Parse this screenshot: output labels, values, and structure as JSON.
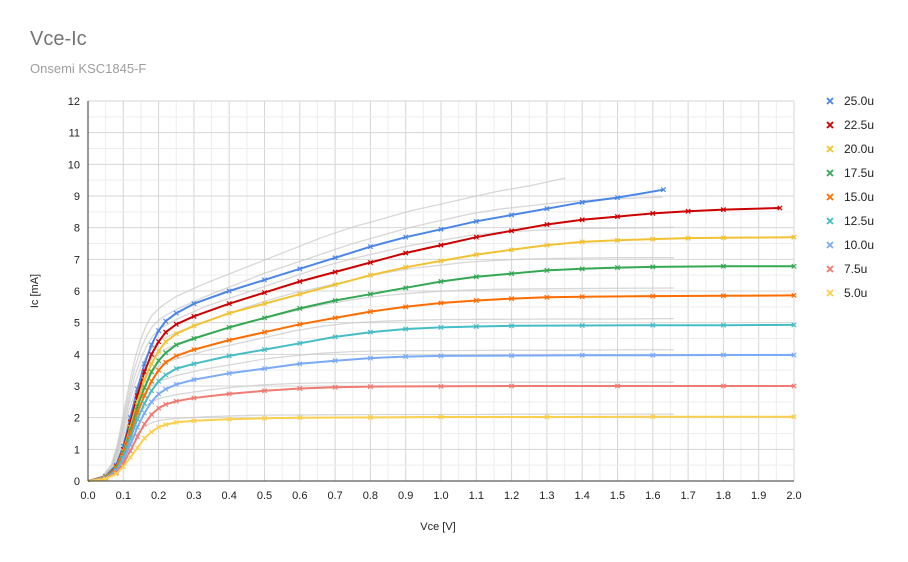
{
  "chart_data": {
    "type": "line",
    "title": "Vce-Ic",
    "subtitle": "Onsemi KSC1845-F",
    "xlabel": "Vce [V]",
    "ylabel": "Ic [mA]",
    "xlim": [
      0,
      2
    ],
    "ylim": [
      0,
      12
    ],
    "x_ticks": [
      "0.0",
      "0.1",
      "0.2",
      "0.3",
      "0.4",
      "0.5",
      "0.6",
      "0.7",
      "0.8",
      "0.9",
      "1.0",
      "1.1",
      "1.2",
      "1.3",
      "1.4",
      "1.5",
      "1.6",
      "1.7",
      "1.8",
      "1.9",
      "2.0"
    ],
    "y_ticks": [
      "0",
      "1",
      "2",
      "3",
      "4",
      "5",
      "6",
      "7",
      "8",
      "9",
      "10",
      "11",
      "12"
    ],
    "grid": true,
    "legend_position": "right",
    "series": [
      {
        "name": "25.0u",
        "color": "#4a86e8",
        "points": [
          [
            0,
            0
          ],
          [
            0.05,
            0.15
          ],
          [
            0.08,
            0.5
          ],
          [
            0.1,
            1.1
          ],
          [
            0.12,
            2.0
          ],
          [
            0.14,
            2.9
          ],
          [
            0.16,
            3.7
          ],
          [
            0.18,
            4.3
          ],
          [
            0.2,
            4.75
          ],
          [
            0.22,
            5.05
          ],
          [
            0.25,
            5.3
          ],
          [
            0.3,
            5.6
          ],
          [
            0.4,
            6.0
          ],
          [
            0.5,
            6.35
          ],
          [
            0.6,
            6.7
          ],
          [
            0.7,
            7.05
          ],
          [
            0.8,
            7.4
          ],
          [
            0.9,
            7.7
          ],
          [
            1.0,
            7.95
          ],
          [
            1.1,
            8.2
          ],
          [
            1.2,
            8.4
          ],
          [
            1.3,
            8.6
          ],
          [
            1.4,
            8.8
          ],
          [
            1.5,
            8.95
          ],
          [
            1.63,
            9.2
          ]
        ]
      },
      {
        "name": "22.5u",
        "color": "#cc0000",
        "points": [
          [
            0,
            0
          ],
          [
            0.05,
            0.14
          ],
          [
            0.08,
            0.45
          ],
          [
            0.1,
            1.0
          ],
          [
            0.12,
            1.85
          ],
          [
            0.14,
            2.7
          ],
          [
            0.16,
            3.45
          ],
          [
            0.18,
            4.0
          ],
          [
            0.2,
            4.4
          ],
          [
            0.22,
            4.7
          ],
          [
            0.25,
            4.95
          ],
          [
            0.3,
            5.2
          ],
          [
            0.4,
            5.6
          ],
          [
            0.5,
            5.95
          ],
          [
            0.6,
            6.3
          ],
          [
            0.7,
            6.6
          ],
          [
            0.8,
            6.9
          ],
          [
            0.9,
            7.2
          ],
          [
            1.0,
            7.45
          ],
          [
            1.1,
            7.7
          ],
          [
            1.2,
            7.9
          ],
          [
            1.3,
            8.1
          ],
          [
            1.4,
            8.25
          ],
          [
            1.5,
            8.35
          ],
          [
            1.6,
            8.45
          ],
          [
            1.7,
            8.52
          ],
          [
            1.8,
            8.57
          ],
          [
            1.96,
            8.62
          ]
        ]
      },
      {
        "name": "20.0u",
        "color": "#f1c232",
        "points": [
          [
            0,
            0
          ],
          [
            0.05,
            0.13
          ],
          [
            0.08,
            0.42
          ],
          [
            0.1,
            0.95
          ],
          [
            0.12,
            1.7
          ],
          [
            0.14,
            2.5
          ],
          [
            0.16,
            3.2
          ],
          [
            0.18,
            3.7
          ],
          [
            0.2,
            4.1
          ],
          [
            0.22,
            4.4
          ],
          [
            0.25,
            4.65
          ],
          [
            0.3,
            4.9
          ],
          [
            0.4,
            5.3
          ],
          [
            0.5,
            5.6
          ],
          [
            0.6,
            5.9
          ],
          [
            0.7,
            6.2
          ],
          [
            0.8,
            6.5
          ],
          [
            0.9,
            6.75
          ],
          [
            1.0,
            6.95
          ],
          [
            1.1,
            7.15
          ],
          [
            1.2,
            7.3
          ],
          [
            1.3,
            7.45
          ],
          [
            1.4,
            7.55
          ],
          [
            1.5,
            7.6
          ],
          [
            1.6,
            7.64
          ],
          [
            1.7,
            7.67
          ],
          [
            1.8,
            7.68
          ],
          [
            2.0,
            7.7
          ]
        ]
      },
      {
        "name": "17.5u",
        "color": "#34a853",
        "points": [
          [
            0,
            0
          ],
          [
            0.05,
            0.12
          ],
          [
            0.08,
            0.4
          ],
          [
            0.1,
            0.9
          ],
          [
            0.12,
            1.6
          ],
          [
            0.14,
            2.35
          ],
          [
            0.16,
            2.95
          ],
          [
            0.18,
            3.45
          ],
          [
            0.2,
            3.8
          ],
          [
            0.22,
            4.05
          ],
          [
            0.25,
            4.3
          ],
          [
            0.3,
            4.5
          ],
          [
            0.4,
            4.85
          ],
          [
            0.5,
            5.15
          ],
          [
            0.6,
            5.45
          ],
          [
            0.7,
            5.7
          ],
          [
            0.8,
            5.9
          ],
          [
            0.9,
            6.1
          ],
          [
            1.0,
            6.3
          ],
          [
            1.1,
            6.45
          ],
          [
            1.2,
            6.55
          ],
          [
            1.3,
            6.65
          ],
          [
            1.4,
            6.7
          ],
          [
            1.5,
            6.74
          ],
          [
            1.6,
            6.76
          ],
          [
            1.8,
            6.78
          ],
          [
            2.0,
            6.78
          ]
        ]
      },
      {
        "name": "15.0u",
        "color": "#ff6d01",
        "points": [
          [
            0,
            0
          ],
          [
            0.05,
            0.11
          ],
          [
            0.08,
            0.37
          ],
          [
            0.1,
            0.85
          ],
          [
            0.12,
            1.5
          ],
          [
            0.14,
            2.15
          ],
          [
            0.16,
            2.7
          ],
          [
            0.18,
            3.15
          ],
          [
            0.2,
            3.5
          ],
          [
            0.22,
            3.75
          ],
          [
            0.25,
            3.95
          ],
          [
            0.3,
            4.15
          ],
          [
            0.4,
            4.45
          ],
          [
            0.5,
            4.7
          ],
          [
            0.6,
            4.95
          ],
          [
            0.7,
            5.15
          ],
          [
            0.8,
            5.35
          ],
          [
            0.9,
            5.5
          ],
          [
            1.0,
            5.62
          ],
          [
            1.1,
            5.7
          ],
          [
            1.2,
            5.76
          ],
          [
            1.3,
            5.8
          ],
          [
            1.4,
            5.82
          ],
          [
            1.6,
            5.84
          ],
          [
            1.8,
            5.85
          ],
          [
            2.0,
            5.86
          ]
        ]
      },
      {
        "name": "12.5u",
        "color": "#46bdc6",
        "points": [
          [
            0,
            0
          ],
          [
            0.05,
            0.1
          ],
          [
            0.08,
            0.33
          ],
          [
            0.1,
            0.75
          ],
          [
            0.12,
            1.35
          ],
          [
            0.14,
            1.95
          ],
          [
            0.16,
            2.45
          ],
          [
            0.18,
            2.85
          ],
          [
            0.2,
            3.15
          ],
          [
            0.22,
            3.35
          ],
          [
            0.25,
            3.55
          ],
          [
            0.3,
            3.7
          ],
          [
            0.4,
            3.95
          ],
          [
            0.5,
            4.15
          ],
          [
            0.6,
            4.35
          ],
          [
            0.7,
            4.55
          ],
          [
            0.8,
            4.7
          ],
          [
            0.9,
            4.8
          ],
          [
            1.0,
            4.85
          ],
          [
            1.1,
            4.88
          ],
          [
            1.2,
            4.9
          ],
          [
            1.4,
            4.91
          ],
          [
            1.6,
            4.92
          ],
          [
            1.8,
            4.92
          ],
          [
            2.0,
            4.93
          ]
        ]
      },
      {
        "name": "10.0u",
        "color": "#7baaf7",
        "points": [
          [
            0,
            0
          ],
          [
            0.05,
            0.09
          ],
          [
            0.08,
            0.3
          ],
          [
            0.1,
            0.65
          ],
          [
            0.12,
            1.15
          ],
          [
            0.14,
            1.7
          ],
          [
            0.16,
            2.15
          ],
          [
            0.18,
            2.5
          ],
          [
            0.2,
            2.75
          ],
          [
            0.22,
            2.9
          ],
          [
            0.25,
            3.05
          ],
          [
            0.3,
            3.2
          ],
          [
            0.4,
            3.4
          ],
          [
            0.5,
            3.55
          ],
          [
            0.6,
            3.7
          ],
          [
            0.7,
            3.8
          ],
          [
            0.8,
            3.88
          ],
          [
            0.9,
            3.93
          ],
          [
            1.0,
            3.95
          ],
          [
            1.2,
            3.96
          ],
          [
            1.4,
            3.97
          ],
          [
            1.6,
            3.97
          ],
          [
            1.8,
            3.98
          ],
          [
            2.0,
            3.98
          ]
        ]
      },
      {
        "name": "7.5u",
        "color": "#f07b72",
        "points": [
          [
            0,
            0
          ],
          [
            0.05,
            0.08
          ],
          [
            0.08,
            0.26
          ],
          [
            0.1,
            0.55
          ],
          [
            0.12,
            0.95
          ],
          [
            0.14,
            1.4
          ],
          [
            0.16,
            1.8
          ],
          [
            0.18,
            2.1
          ],
          [
            0.2,
            2.3
          ],
          [
            0.22,
            2.42
          ],
          [
            0.25,
            2.52
          ],
          [
            0.3,
            2.62
          ],
          [
            0.4,
            2.75
          ],
          [
            0.5,
            2.85
          ],
          [
            0.6,
            2.92
          ],
          [
            0.7,
            2.96
          ],
          [
            0.8,
            2.98
          ],
          [
            1.0,
            2.99
          ],
          [
            1.2,
            3.0
          ],
          [
            1.5,
            3.0
          ],
          [
            1.8,
            3.0
          ],
          [
            2.0,
            3.0
          ]
        ]
      },
      {
        "name": "5.0u",
        "color": "#fcd04f",
        "points": [
          [
            0,
            0
          ],
          [
            0.05,
            0.07
          ],
          [
            0.08,
            0.22
          ],
          [
            0.1,
            0.45
          ],
          [
            0.12,
            0.75
          ],
          [
            0.14,
            1.05
          ],
          [
            0.16,
            1.35
          ],
          [
            0.18,
            1.55
          ],
          [
            0.2,
            1.7
          ],
          [
            0.22,
            1.78
          ],
          [
            0.25,
            1.85
          ],
          [
            0.3,
            1.9
          ],
          [
            0.4,
            1.95
          ],
          [
            0.5,
            1.98
          ],
          [
            0.6,
            2.0
          ],
          [
            0.8,
            2.01
          ],
          [
            1.0,
            2.02
          ],
          [
            1.3,
            2.02
          ],
          [
            1.6,
            2.03
          ],
          [
            2.0,
            2.03
          ]
        ]
      }
    ]
  }
}
